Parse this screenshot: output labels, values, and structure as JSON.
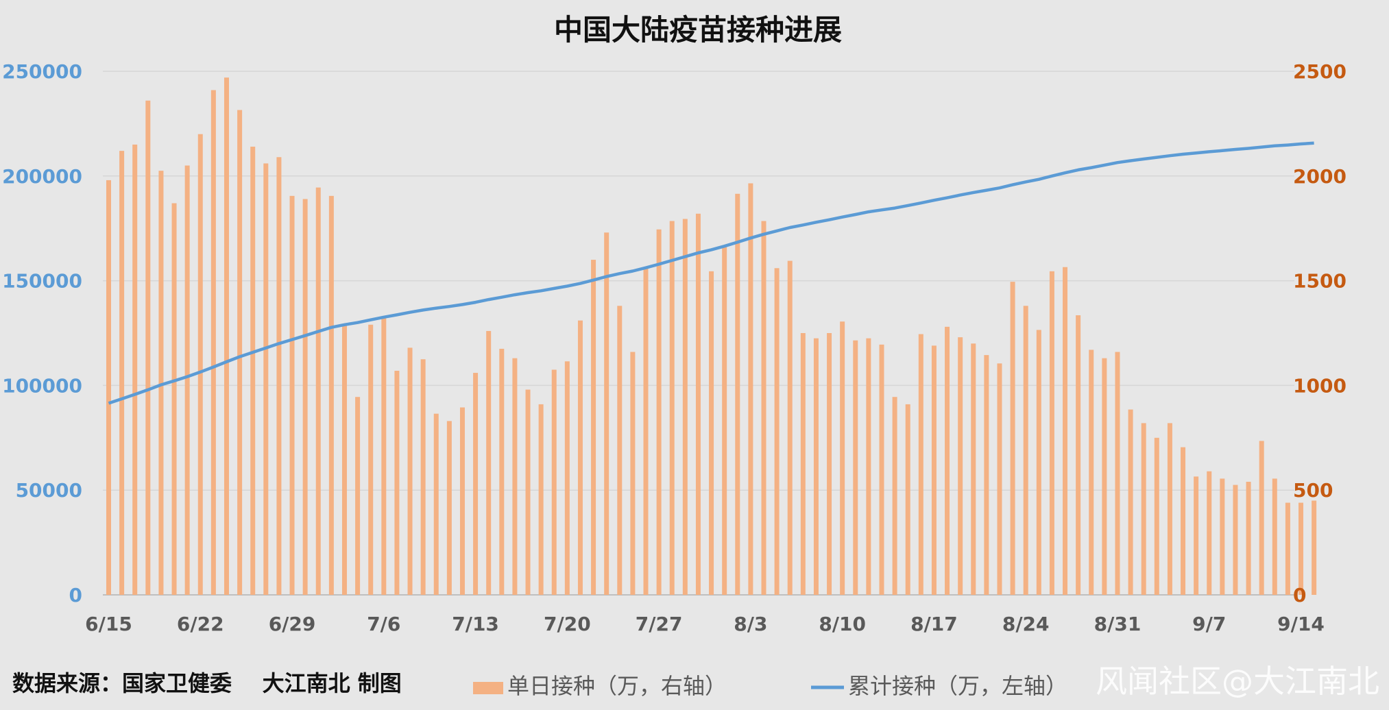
{
  "chart_data": {
    "type": "bar+line",
    "title": "中国大陆疫苗接种进展",
    "x_tick_labels": [
      "6/15",
      "6/22",
      "6/29",
      "7/6",
      "7/13",
      "7/20",
      "7/27",
      "8/3",
      "8/10",
      "8/17",
      "8/24",
      "8/31",
      "9/7",
      "9/14"
    ],
    "left_axis": {
      "ylim": [
        0,
        250000
      ],
      "ticks": [
        "0",
        "50000",
        "100000",
        "150000",
        "200000",
        "250000"
      ],
      "color": "#5b9bd5"
    },
    "right_axis": {
      "ylim": [
        0,
        2500
      ],
      "ticks": [
        "0",
        "500",
        "1000",
        "1500",
        "2000",
        "2500"
      ],
      "color": "#c55a11"
    },
    "grid": true,
    "legend_placement": "bottom",
    "series": [
      {
        "name": "单日接种（万，右轴）",
        "kind": "bar",
        "axis": "right",
        "color": "#f4b183",
        "values": [
          1980,
          2120,
          2150,
          2360,
          2025,
          1870,
          2050,
          2200,
          2410,
          2470,
          2315,
          2140,
          2060,
          2090,
          1905,
          1890,
          1945,
          1905,
          1285,
          945,
          1290,
          1325,
          1070,
          1180,
          1125,
          865,
          830,
          895,
          1060,
          1260,
          1175,
          1130,
          980,
          910,
          1075,
          1115,
          1310,
          1600,
          1730,
          1380,
          1160,
          1565,
          1745,
          1785,
          1795,
          1820,
          1545,
          1665,
          1915,
          1965,
          1785,
          1560,
          1595,
          1250,
          1225,
          1250,
          1305,
          1215,
          1225,
          1195,
          945,
          910,
          1245,
          1190,
          1280,
          1230,
          1200,
          1145,
          1105,
          1495,
          1380,
          1265,
          1545,
          1565,
          1335,
          1170,
          1130,
          1160,
          885,
          820,
          750,
          820,
          705,
          565,
          590,
          555,
          525,
          540,
          735,
          555,
          440,
          440,
          450
        ]
      },
      {
        "name": "累计接种（万，左轴）",
        "kind": "line",
        "axis": "left",
        "color": "#5b9bd5",
        "values": [
          91500,
          93600,
          95700,
          97900,
          100300,
          102200,
          104200,
          106400,
          108800,
          111300,
          113700,
          115800,
          117900,
          120000,
          121900,
          123800,
          125800,
          127700,
          129000,
          130000,
          131300,
          132600,
          133700,
          134900,
          136000,
          136900,
          137700,
          138600,
          139700,
          141000,
          142100,
          143300,
          144300,
          145200,
          146300,
          147400,
          148700,
          150300,
          152000,
          153400,
          154600,
          156200,
          157900,
          159700,
          161500,
          163300,
          164800,
          166500,
          168400,
          170400,
          172200,
          173800,
          175400,
          176600,
          177900,
          179100,
          180400,
          181600,
          182900,
          183800,
          184700,
          185900,
          187100,
          188400,
          189600,
          190900,
          192100,
          193200,
          194300,
          195800,
          197200,
          198400,
          200000,
          201500,
          202900,
          204000,
          205200,
          206400,
          207300,
          208100,
          208900,
          209700,
          210400,
          211000,
          211600,
          212100,
          212700,
          213200,
          213800,
          214400,
          214800,
          215300,
          215700
        ]
      }
    ]
  },
  "footer": {
    "source": "数据来源：国家卫健委    大江南北 制图"
  },
  "watermark": "风闻社区@大江南北"
}
